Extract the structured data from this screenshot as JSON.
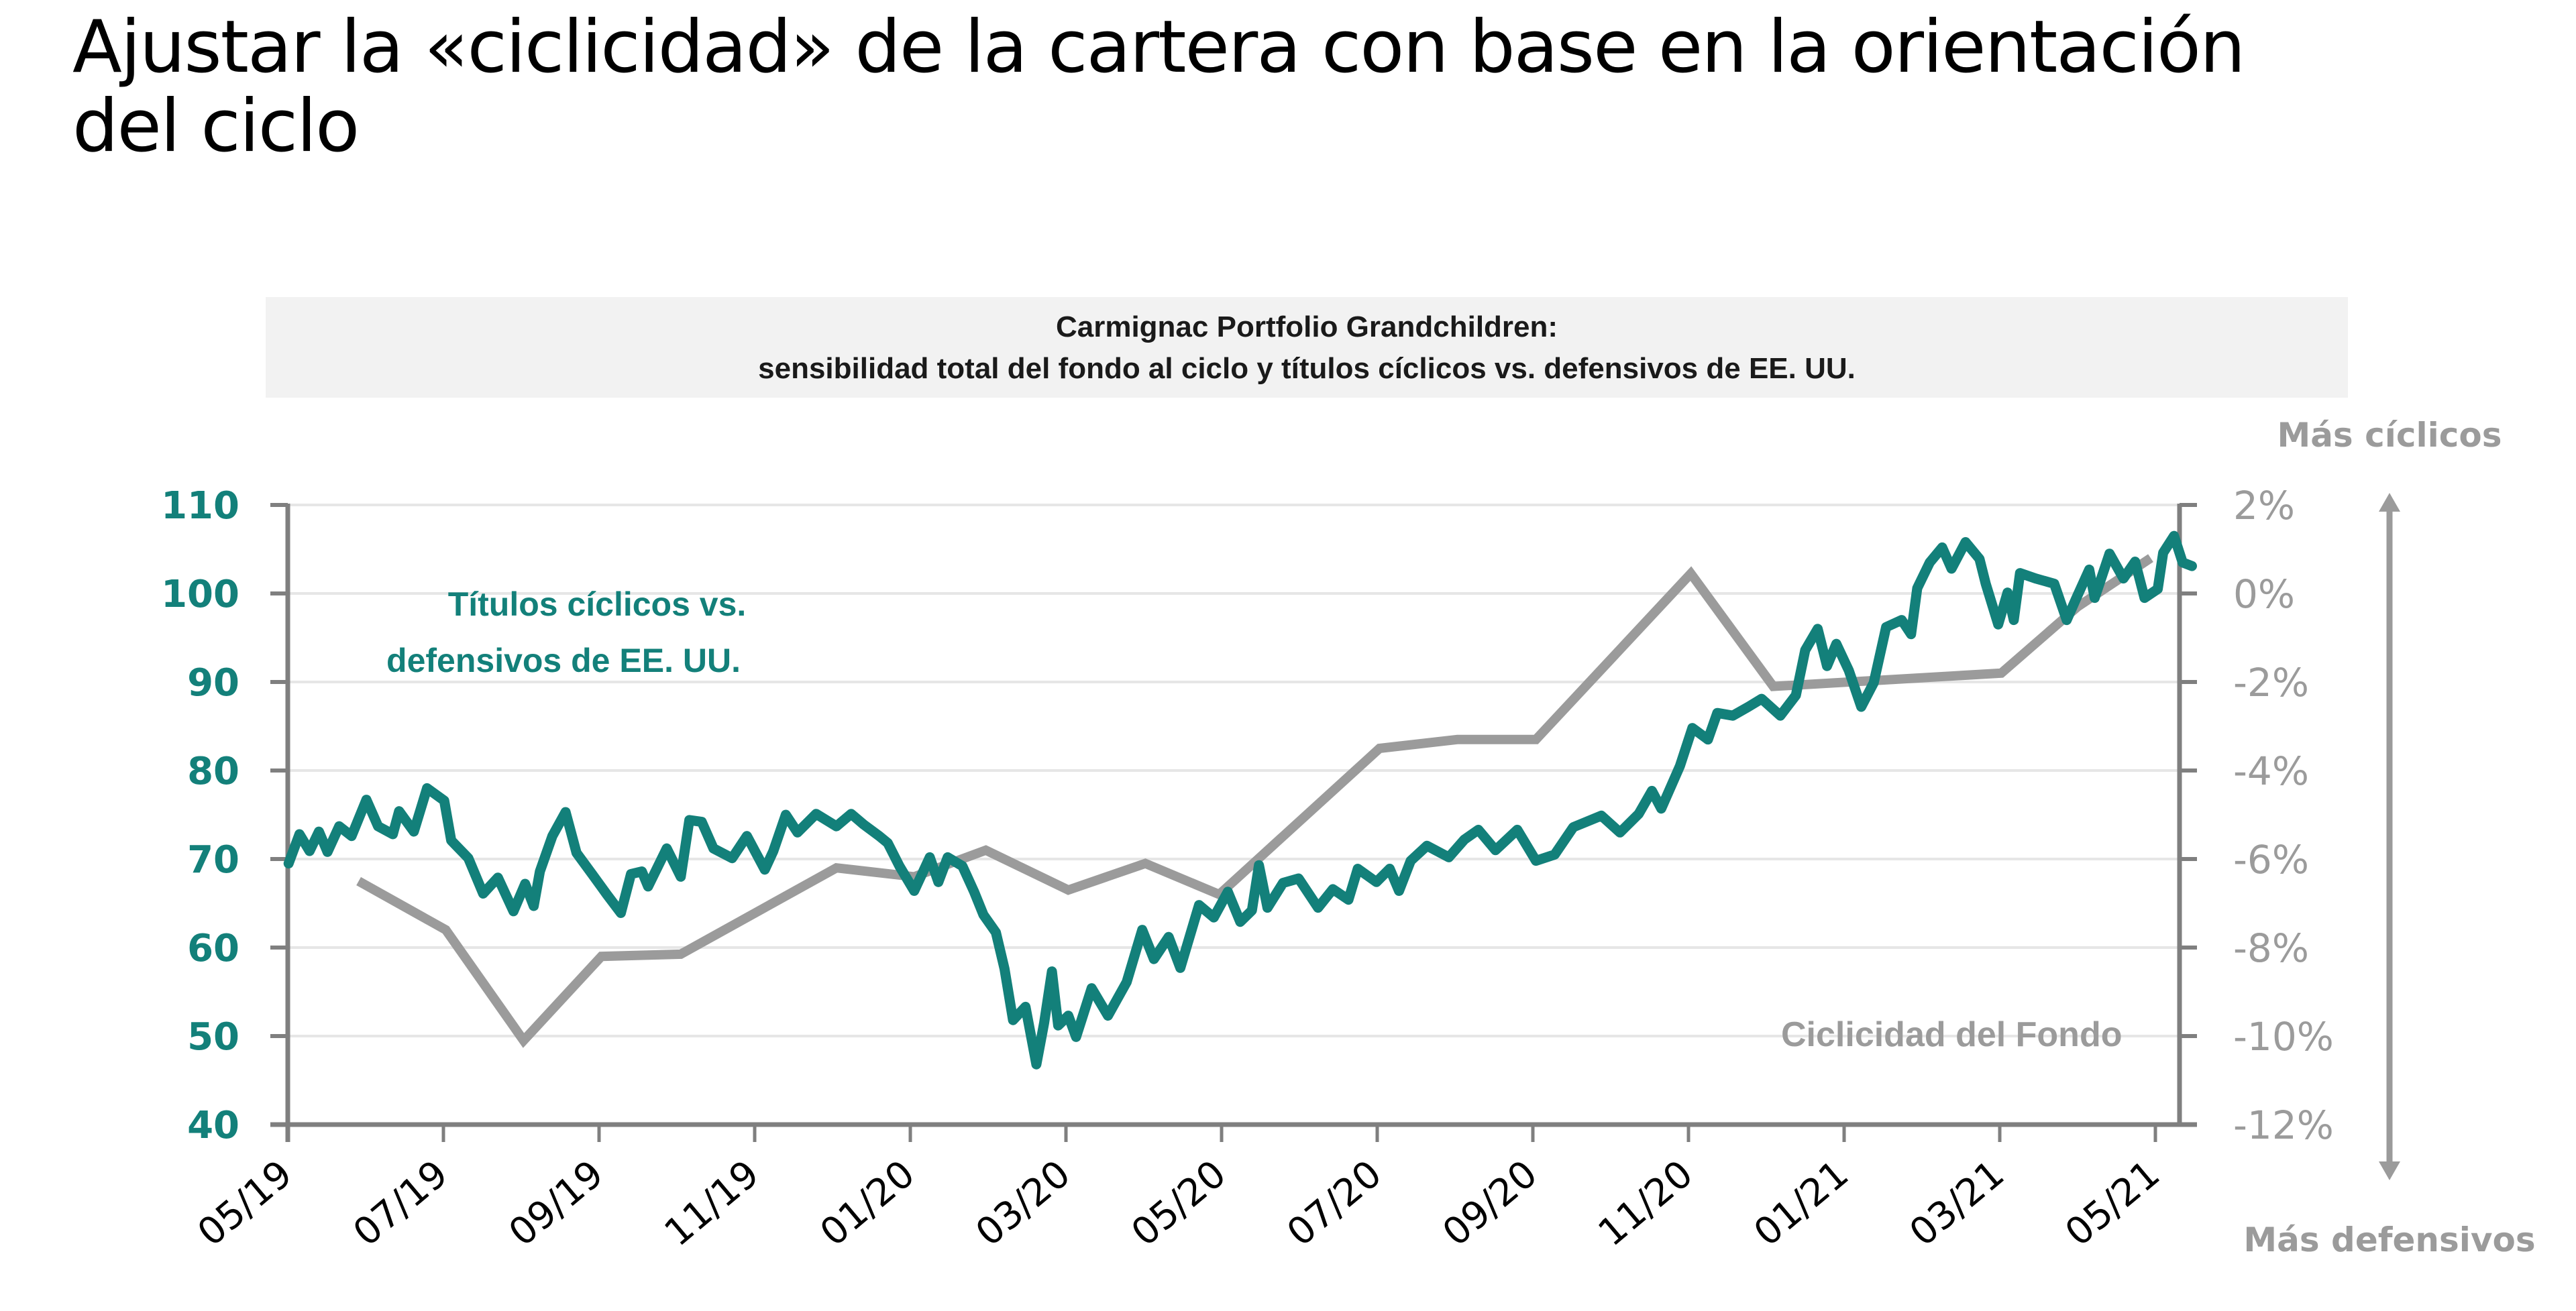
{
  "page": {
    "title": "Ajustar la «ciclicidad» de la cartera con base en la orientación del ciclo"
  },
  "chart_box": {
    "title_line1": "Carmignac Portfolio Grandchildren:",
    "title_line2": "sensibilidad total del fondo al ciclo y títulos cíclicos vs. defensivos de EE. UU."
  },
  "colors": {
    "teal": "#13807A",
    "gray": "#9B9B9B",
    "axis": "#7f7f7f",
    "grid": "#e6e6e6",
    "title_box": "#F2F2F2"
  },
  "chart_data": {
    "type": "line",
    "title": "Carmignac Portfolio Grandchildren: sensibilidad total del fondo al ciclo y títulos cíclicos vs. defensivos de EE. UU.",
    "x_unit": "months since 05/2019",
    "x_range": [
      0,
      24.3
    ],
    "x_ticks": [
      {
        "x": 0,
        "label": "05/19"
      },
      {
        "x": 2,
        "label": "07/19"
      },
      {
        "x": 4,
        "label": "09/19"
      },
      {
        "x": 6,
        "label": "11/19"
      },
      {
        "x": 8,
        "label": "01/20"
      },
      {
        "x": 10,
        "label": "03/20"
      },
      {
        "x": 12,
        "label": "05/20"
      },
      {
        "x": 14,
        "label": "07/20"
      },
      {
        "x": 16,
        "label": "09/20"
      },
      {
        "x": 18,
        "label": "11/20"
      },
      {
        "x": 20,
        "label": "01/21"
      },
      {
        "x": 22,
        "label": "03/21"
      },
      {
        "x": 24,
        "label": "05/21"
      }
    ],
    "y_left": {
      "range": [
        40,
        110
      ],
      "ticks": [
        110,
        100,
        90,
        80,
        70,
        60,
        50,
        40
      ],
      "tick_labels": [
        "110",
        "100",
        "90",
        "80",
        "70",
        "60",
        "50",
        "40"
      ]
    },
    "y_right": {
      "range": [
        -12,
        2
      ],
      "ticks": [
        2,
        0,
        -2,
        -4,
        -6,
        -8,
        -10,
        -12
      ],
      "tick_labels": [
        "2%",
        "0%",
        "-2%",
        "-4%",
        "-6%",
        "-8%",
        "-10%",
        "-12%"
      ],
      "top_label": "Más cíclicos",
      "bottom_label": "Más defensivos"
    },
    "grid": true,
    "series": [
      {
        "name": "Títulos cíclicos vs. defensivos de EE. UU.",
        "axis": "left",
        "color": "#13807A",
        "label_lines": [
          "Títulos cíclicos vs.",
          "defensivos de EE. UU."
        ],
        "points": [
          [
            0.01,
            69.5
          ],
          [
            0.15,
            72.8
          ],
          [
            0.28,
            70.9
          ],
          [
            0.4,
            73.1
          ],
          [
            0.51,
            70.8
          ],
          [
            0.66,
            73.7
          ],
          [
            0.82,
            72.6
          ],
          [
            1.01,
            76.7
          ],
          [
            1.16,
            73.7
          ],
          [
            1.35,
            72.8
          ],
          [
            1.43,
            75.4
          ],
          [
            1.62,
            73.1
          ],
          [
            1.79,
            78.0
          ],
          [
            2.01,
            76.6
          ],
          [
            2.1,
            72.1
          ],
          [
            2.32,
            70.1
          ],
          [
            2.51,
            66.1
          ],
          [
            2.7,
            67.9
          ],
          [
            2.9,
            64.1
          ],
          [
            3.05,
            67.2
          ],
          [
            3.16,
            64.7
          ],
          [
            3.24,
            68.6
          ],
          [
            3.4,
            72.6
          ],
          [
            3.57,
            75.3
          ],
          [
            3.71,
            70.7
          ],
          [
            3.91,
            68.3
          ],
          [
            4.1,
            66.0
          ],
          [
            4.28,
            63.9
          ],
          [
            4.41,
            68.3
          ],
          [
            4.55,
            68.6
          ],
          [
            4.63,
            66.9
          ],
          [
            4.87,
            71.2
          ],
          [
            5.05,
            68.0
          ],
          [
            5.16,
            74.4
          ],
          [
            5.32,
            74.2
          ],
          [
            5.47,
            71.2
          ],
          [
            5.71,
            70.1
          ],
          [
            5.9,
            72.6
          ],
          [
            6.13,
            68.8
          ],
          [
            6.24,
            70.9
          ],
          [
            6.4,
            75.0
          ],
          [
            6.55,
            73.0
          ],
          [
            6.79,
            75.1
          ],
          [
            7.05,
            73.7
          ],
          [
            7.24,
            75.1
          ],
          [
            7.4,
            73.9
          ],
          [
            7.6,
            72.6
          ],
          [
            7.71,
            71.8
          ],
          [
            7.86,
            69.2
          ],
          [
            8.05,
            66.4
          ],
          [
            8.25,
            70.2
          ],
          [
            8.36,
            67.4
          ],
          [
            8.48,
            70.2
          ],
          [
            8.67,
            69.2
          ],
          [
            8.82,
            66.3
          ],
          [
            8.94,
            63.7
          ],
          [
            9.1,
            61.7
          ],
          [
            9.21,
            57.6
          ],
          [
            9.32,
            51.8
          ],
          [
            9.48,
            53.3
          ],
          [
            9.62,
            46.8
          ],
          [
            9.72,
            51.5
          ],
          [
            9.82,
            57.3
          ],
          [
            9.9,
            51.2
          ],
          [
            10.03,
            52.3
          ],
          [
            10.13,
            49.9
          ],
          [
            10.33,
            55.4
          ],
          [
            10.54,
            52.3
          ],
          [
            10.78,
            56.1
          ],
          [
            10.98,
            62.0
          ],
          [
            11.13,
            58.7
          ],
          [
            11.32,
            61.2
          ],
          [
            11.47,
            57.7
          ],
          [
            11.71,
            64.8
          ],
          [
            11.9,
            63.4
          ],
          [
            12.08,
            66.3
          ],
          [
            12.24,
            62.9
          ],
          [
            12.48,
            69.3
          ],
          [
            12.39,
            64.2
          ],
          [
            12.59,
            64.5
          ],
          [
            12.79,
            67.3
          ],
          [
            12.99,
            67.8
          ],
          [
            13.24,
            64.5
          ],
          [
            13.43,
            66.6
          ],
          [
            13.63,
            65.4
          ],
          [
            13.75,
            68.9
          ],
          [
            13.99,
            67.4
          ],
          [
            14.16,
            68.9
          ],
          [
            14.28,
            66.4
          ],
          [
            14.43,
            69.8
          ],
          [
            14.64,
            71.5
          ],
          [
            14.92,
            70.2
          ],
          [
            15.12,
            72.2
          ],
          [
            15.3,
            73.3
          ],
          [
            15.52,
            71.0
          ],
          [
            15.8,
            73.3
          ],
          [
            16.04,
            69.8
          ],
          [
            16.28,
            70.5
          ],
          [
            16.52,
            73.6
          ],
          [
            16.88,
            74.9
          ],
          [
            17.12,
            73.0
          ],
          [
            17.36,
            75.1
          ],
          [
            17.53,
            77.7
          ],
          [
            17.65,
            75.7
          ],
          [
            17.89,
            80.5
          ],
          [
            18.05,
            84.8
          ],
          [
            18.25,
            83.5
          ],
          [
            18.37,
            86.5
          ],
          [
            18.57,
            86.2
          ],
          [
            18.77,
            87.2
          ],
          [
            18.94,
            88.1
          ],
          [
            19.18,
            86.2
          ],
          [
            19.38,
            88.5
          ],
          [
            19.5,
            93.6
          ],
          [
            19.66,
            96.0
          ],
          [
            19.78,
            91.8
          ],
          [
            19.9,
            94.3
          ],
          [
            20.06,
            91.3
          ],
          [
            20.22,
            87.2
          ],
          [
            20.38,
            89.9
          ],
          [
            20.54,
            96.2
          ],
          [
            20.74,
            97.0
          ],
          [
            20.86,
            95.4
          ],
          [
            20.94,
            100.6
          ],
          [
            21.1,
            103.5
          ],
          [
            21.26,
            105.2
          ],
          [
            21.38,
            102.8
          ],
          [
            21.56,
            105.8
          ],
          [
            21.74,
            103.9
          ],
          [
            21.82,
            101.1
          ],
          [
            21.98,
            96.5
          ],
          [
            22.1,
            100.1
          ],
          [
            22.18,
            97.0
          ],
          [
            22.26,
            102.3
          ],
          [
            22.46,
            101.7
          ],
          [
            22.7,
            101.1
          ],
          [
            22.86,
            97.0
          ],
          [
            22.98,
            99.4
          ],
          [
            23.15,
            102.7
          ],
          [
            23.22,
            99.5
          ],
          [
            23.41,
            104.5
          ],
          [
            23.59,
            101.7
          ],
          [
            23.74,
            103.6
          ],
          [
            23.86,
            99.5
          ],
          [
            24.03,
            100.5
          ],
          [
            24.1,
            104.6
          ],
          [
            24.24,
            106.5
          ],
          [
            24.35,
            103.5
          ],
          [
            24.47,
            103.1
          ]
        ]
      },
      {
        "name": "Ciclicidad del Fondo",
        "axis": "right",
        "color": "#9B9B9B",
        "label": "Ciclicidad del Fondo",
        "points": [
          [
            0.91,
            -6.5
          ],
          [
            2.03,
            -7.6
          ],
          [
            3.03,
            -10.1
          ],
          [
            4.03,
            -8.2
          ],
          [
            5.05,
            -8.15
          ],
          [
            7.05,
            -6.2
          ],
          [
            8.05,
            -6.4
          ],
          [
            8.97,
            -5.8
          ],
          [
            10.03,
            -6.7
          ],
          [
            11.02,
            -6.1
          ],
          [
            11.97,
            -6.8
          ],
          [
            14.03,
            -3.5
          ],
          [
            15.03,
            -3.3
          ],
          [
            16.04,
            -3.3
          ],
          [
            18.03,
            0.45
          ],
          [
            19.09,
            -2.1
          ],
          [
            22.02,
            -1.8
          ],
          [
            23.0,
            -0.3
          ],
          [
            23.94,
            0.8
          ]
        ]
      }
    ],
    "legend": "inline labels (top-left for teal series, bottom-right for gray series)"
  }
}
